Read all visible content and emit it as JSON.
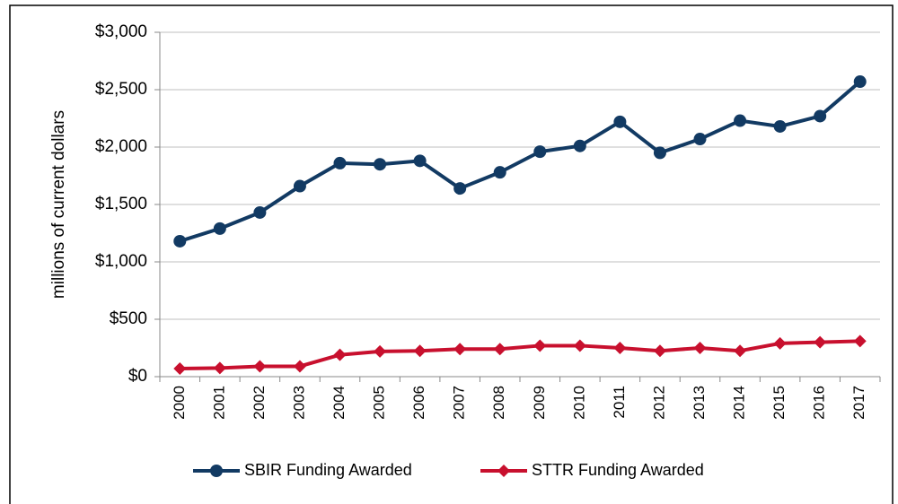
{
  "chart_data": {
    "type": "line",
    "y_label": "millions of current dollars",
    "categories": [
      "2000",
      "2001",
      "2002",
      "2003",
      "2004",
      "2005",
      "2006",
      "2007",
      "2008",
      "2009",
      "2010",
      "2011",
      "2012",
      "2013",
      "2014",
      "2015",
      "2016",
      "2017"
    ],
    "series": [
      {
        "name": "SBIR Funding Awarded",
        "color": "#123a63",
        "marker": "circle",
        "values": [
          1180,
          1290,
          1430,
          1660,
          1860,
          1850,
          1880,
          1640,
          1780,
          1960,
          2010,
          2220,
          1950,
          2070,
          2230,
          2180,
          2270,
          2570
        ]
      },
      {
        "name": "STTR Funding Awarded",
        "color": "#c8102e",
        "marker": "diamond",
        "values": [
          70,
          75,
          90,
          90,
          190,
          220,
          225,
          240,
          240,
          270,
          270,
          250,
          225,
          250,
          225,
          290,
          300,
          310
        ]
      }
    ],
    "ylim": [
      0,
      3000
    ],
    "yticks": [
      {
        "value": 0,
        "label": "$0"
      },
      {
        "value": 500,
        "label": "$500"
      },
      {
        "value": 1000,
        "label": "$1,000"
      },
      {
        "value": 1500,
        "label": "$1,500"
      },
      {
        "value": 2000,
        "label": "$2,000"
      },
      {
        "value": 2500,
        "label": "$2,500"
      },
      {
        "value": 3000,
        "label": "$3,000"
      }
    ],
    "grid": true,
    "legend": "bottom"
  }
}
